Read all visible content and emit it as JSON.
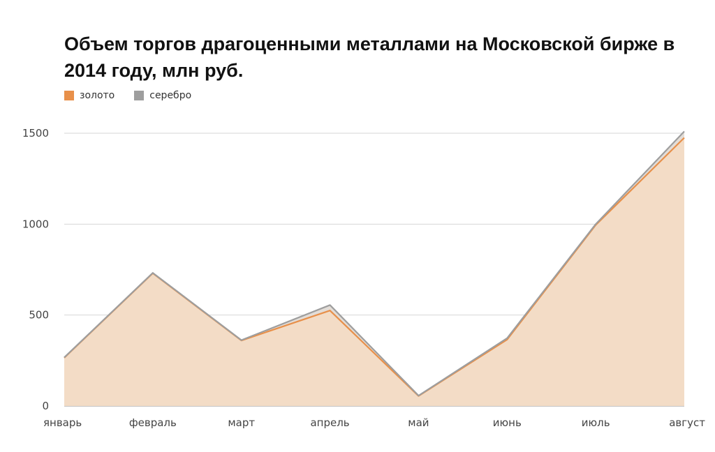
{
  "chart_data": {
    "type": "area",
    "title": "Объем торгов драгоценными металлами на Московской бирже в 2014 году, млн руб.",
    "categories": [
      "январь",
      "февраль",
      "март",
      "апрель",
      "май",
      "июнь",
      "июль",
      "август"
    ],
    "series": [
      {
        "name": "золото",
        "color": "#e8904a",
        "values": [
          265,
          730,
          360,
          525,
          55,
          365,
          995,
          1475
        ]
      },
      {
        "name": "серебро",
        "color": "#9e9e9e",
        "values": [
          2,
          2,
          2,
          30,
          2,
          8,
          5,
          35
        ]
      }
    ],
    "stacked": true,
    "area_fill": "#f3dcc6",
    "ylim": [
      0,
      1500
    ],
    "yticks": [
      "0",
      "500",
      "1000",
      "1500"
    ],
    "ytick_values": [
      0,
      500,
      1000,
      1500
    ],
    "grid": true,
    "legend_position": "top-left"
  }
}
